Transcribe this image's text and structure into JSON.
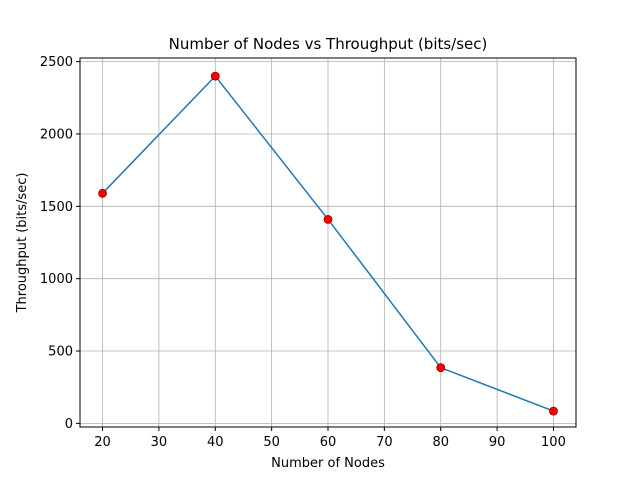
{
  "chart_data": {
    "type": "line",
    "title": "Number of Nodes vs Throughput (bits/sec)",
    "xlabel": "Number of Nodes",
    "ylabel": "Throughput (bits/sec)",
    "x": [
      20,
      40,
      60,
      80,
      100
    ],
    "series": [
      {
        "values": [
          1590,
          2400,
          1410,
          385,
          85
        ]
      }
    ],
    "xlim": [
      16,
      104
    ],
    "ylim": [
      -25,
      2525
    ],
    "xticks": [
      20,
      30,
      40,
      50,
      60,
      70,
      80,
      90,
      100
    ],
    "yticks": [
      0,
      500,
      1000,
      1500,
      2000,
      2500
    ],
    "grid": true,
    "line_color": "#1f77b4",
    "marker_color": "#ff0000",
    "marker_edge_color": "#8b0000"
  }
}
